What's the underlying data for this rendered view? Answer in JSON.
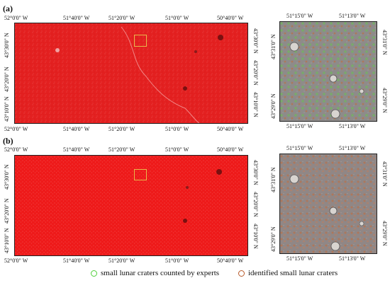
{
  "panels": {
    "a": {
      "label": "(a)"
    },
    "b": {
      "label": "(b)"
    }
  },
  "main_map": {
    "x_ticks": [
      "52°0'0\" W",
      "51°40'0\" W",
      "51°20'0\" W",
      "51°0'0\" W",
      "50°40'0\" W"
    ],
    "y_ticks": [
      "43°30'0\" N",
      "43°20'0\" N",
      "43°10'0\" N"
    ]
  },
  "detail_map": {
    "x_ticks": [
      "51°15'0\" W",
      "51°13'0\" W"
    ],
    "y_ticks": [
      "43°31'0\" N",
      "43°29'0\" N"
    ]
  },
  "legend": {
    "items": [
      {
        "label": "small lunar craters counted by experts",
        "color": "#4fcf3a"
      },
      {
        "label": "identified small lunar craters",
        "color": "#b85a2a"
      }
    ]
  },
  "colors": {
    "map_red": "#e32020",
    "detail_gray": "#8e8b8a",
    "marker": "#e8b84a"
  }
}
